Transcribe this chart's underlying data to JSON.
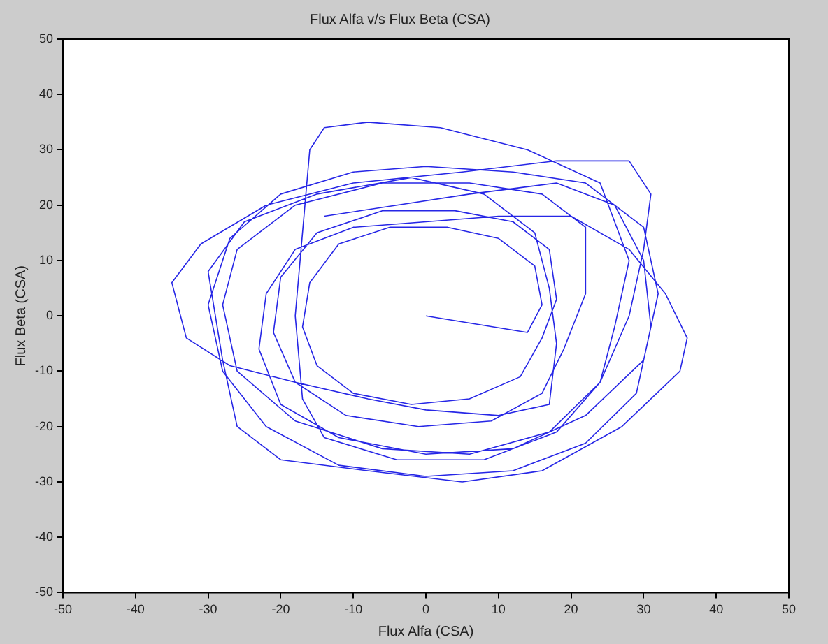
{
  "chart_data": {
    "type": "line",
    "title": "Flux Alfa v/s Flux Beta (CSA)",
    "xlabel": "Flux Alfa (CSA)",
    "ylabel": "Flux Beta (CSA)",
    "xlim": [
      -50,
      50
    ],
    "xticks": [
      -50,
      -40,
      -30,
      -20,
      -10,
      0,
      10,
      20,
      30,
      40,
      50
    ],
    "ylim": [
      -50,
      50
    ],
    "yticks": [
      -50,
      -40,
      -30,
      -20,
      -10,
      0,
      10,
      20,
      30,
      40,
      50
    ],
    "grid": false,
    "legend": false,
    "marker": "none",
    "line_style": "solid",
    "series": [
      {
        "color": "#2626e6",
        "x": [
          0,
          14,
          16,
          15,
          10,
          3,
          -5,
          -12,
          -16,
          -17,
          -15,
          -10,
          -2,
          6,
          13,
          16,
          18,
          17,
          12,
          4,
          -6,
          -15,
          -20,
          -21,
          -18,
          -11,
          -1,
          9,
          16,
          19,
          22,
          22,
          16,
          6,
          -6,
          -18,
          -26,
          -28,
          -26,
          -18,
          -6,
          6,
          17,
          24,
          26,
          28,
          24,
          14,
          2,
          -8,
          -14,
          -16,
          -17,
          -18,
          -17,
          -14,
          -4,
          8,
          18,
          24,
          28,
          30,
          31,
          28,
          18,
          5,
          -10,
          -22,
          -31,
          -35,
          -33,
          -27,
          -18,
          -8,
          0,
          10,
          17,
          18,
          17,
          15,
          8,
          -2,
          -15,
          -25,
          -30,
          -28,
          -26,
          -20,
          -8,
          5,
          16,
          27,
          35,
          36,
          33,
          28,
          20,
          10,
          0,
          -10,
          -18,
          -22,
          -23,
          -20,
          -12,
          0,
          12,
          22,
          30,
          32,
          30,
          22,
          12,
          0,
          -10,
          -20,
          -27,
          -30,
          -28,
          -22,
          -12,
          0,
          12,
          22,
          29,
          31,
          30,
          26,
          18,
          6,
          -4,
          -14
        ],
        "values": [
          0,
          -3,
          2,
          9,
          14,
          16,
          16,
          13,
          6,
          -2,
          -9,
          -14,
          -16,
          -15,
          -11,
          -4,
          3,
          12,
          17,
          19,
          19,
          15,
          7,
          -3,
          -12,
          -18,
          -20,
          -19,
          -14,
          -6,
          4,
          16,
          22,
          24,
          24,
          20,
          12,
          2,
          -10,
          -19,
          -24,
          -25,
          -21,
          -12,
          -2,
          10,
          24,
          30,
          34,
          35,
          34,
          30,
          15,
          0,
          -15,
          -22,
          -26,
          -26,
          -21,
          -12,
          0,
          12,
          22,
          28,
          28,
          26,
          24,
          20,
          13,
          6,
          -4,
          -9,
          -12,
          -15,
          -17,
          -18,
          -16,
          -5,
          5,
          15,
          22,
          25,
          22,
          17,
          8,
          -8,
          -20,
          -26,
          -28,
          -30,
          -28,
          -20,
          -10,
          -4,
          4,
          12,
          18,
          18,
          17,
          16,
          12,
          4,
          -6,
          -16,
          -22,
          -25,
          -24,
          -18,
          -8,
          4,
          16,
          24,
          26,
          27,
          26,
          22,
          14,
          2,
          -10,
          -20,
          -27,
          -29,
          -28,
          -23,
          -14,
          -2,
          10,
          20,
          24,
          22,
          20,
          18
        ]
      }
    ]
  }
}
